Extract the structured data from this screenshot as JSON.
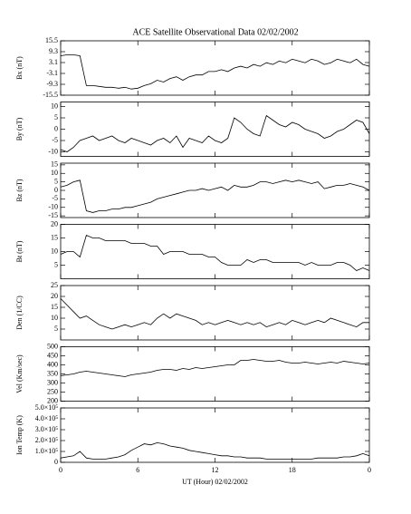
{
  "chart_data": [
    {
      "type": "line",
      "title": "ACE Satellite Observational Data   02/02/2002",
      "ylabel": "Bx (nT)",
      "color": "#000000",
      "x": [
        0,
        0.5,
        1,
        1.5,
        2,
        2.5,
        3,
        3.5,
        4,
        4.5,
        5,
        5.5,
        6,
        6.5,
        7,
        7.5,
        8,
        8.5,
        9,
        9.5,
        10,
        10.5,
        11,
        11.5,
        12,
        12.5,
        13,
        13.5,
        14,
        14.5,
        15,
        15.5,
        16,
        16.5,
        17,
        17.5,
        18,
        18.5,
        19,
        19.5,
        20,
        20.5,
        21,
        21.5,
        22,
        22.5,
        23,
        23.5,
        24
      ],
      "values": [
        7,
        7.5,
        7.5,
        7,
        -10,
        -10,
        -10.5,
        -11,
        -11,
        -11.5,
        -11,
        -12,
        -11.5,
        -10,
        -9,
        -7,
        -8,
        -6,
        -5,
        -7,
        -5,
        -4,
        -4,
        -2,
        -2,
        -1,
        -2,
        0,
        1,
        0,
        2,
        1,
        3,
        2,
        4,
        3,
        5,
        4,
        3,
        5,
        4,
        2,
        3,
        5,
        4,
        3,
        5,
        2,
        1
      ],
      "xlim": [
        0,
        24
      ],
      "xticks": [
        0,
        6,
        12,
        18,
        {
          "value": 24,
          "label": "0"
        }
      ],
      "ylim": [
        -15.5,
        15.5
      ],
      "yticks": [
        -15.5,
        -9.3,
        -3.1,
        3.1,
        9.3,
        15.5
      ]
    },
    {
      "type": "line",
      "ylabel": "By (nT)",
      "color": "#000000",
      "x": [
        0,
        0.5,
        1,
        1.5,
        2,
        2.5,
        3,
        3.5,
        4,
        4.5,
        5,
        5.5,
        6,
        6.5,
        7,
        7.5,
        8,
        8.5,
        9,
        9.5,
        10,
        10.5,
        11,
        11.5,
        12,
        12.5,
        13,
        13.5,
        14,
        14.5,
        15,
        15.5,
        16,
        16.5,
        17,
        17.5,
        18,
        18.5,
        19,
        19.5,
        20,
        20.5,
        21,
        21.5,
        22,
        22.5,
        23,
        23.5,
        24
      ],
      "values": [
        -9,
        -10,
        -8,
        -5,
        -4,
        -3,
        -5,
        -4,
        -3,
        -5,
        -6,
        -4,
        -5,
        -6,
        -7,
        -5,
        -4,
        -6,
        -3,
        -8,
        -4,
        -5,
        -6,
        -3,
        -5,
        -6,
        -4,
        5,
        3,
        0,
        -2,
        -3,
        6,
        4,
        2,
        1,
        3,
        2,
        0,
        -1,
        -2,
        -4,
        -3,
        -1,
        0,
        2,
        4,
        3,
        -2
      ],
      "xlim": [
        0,
        24
      ],
      "xticks": [
        0,
        6,
        12,
        18,
        {
          "value": 24,
          "label": "0"
        }
      ],
      "ylim": [
        -12,
        12
      ],
      "yticks": [
        -10,
        -5,
        0,
        5,
        10
      ]
    },
    {
      "type": "line",
      "ylabel": "Bz (nT)",
      "color": "#000000",
      "x": [
        0,
        0.5,
        1,
        1.5,
        2,
        2.5,
        3,
        3.5,
        4,
        4.5,
        5,
        5.5,
        6,
        6.5,
        7,
        7.5,
        8,
        8.5,
        9,
        9.5,
        10,
        10.5,
        11,
        11.5,
        12,
        12.5,
        13,
        13.5,
        14,
        14.5,
        15,
        15.5,
        16,
        16.5,
        17,
        17.5,
        18,
        18.5,
        19,
        19.5,
        20,
        20.5,
        21,
        21.5,
        22,
        22.5,
        23,
        23.5,
        24
      ],
      "values": [
        2,
        3,
        5,
        6,
        -12,
        -13,
        -12,
        -12,
        -11,
        -11,
        -10,
        -10,
        -9,
        -8,
        -7,
        -5,
        -4,
        -3,
        -2,
        -1,
        0,
        0,
        1,
        0,
        1,
        2,
        0,
        3,
        2,
        2,
        3,
        5,
        5,
        4,
        5,
        6,
        5,
        6,
        5,
        4,
        5,
        1,
        2,
        3,
        3,
        4,
        3,
        2,
        0
      ],
      "xlim": [
        0,
        24
      ],
      "xticks": [
        0,
        6,
        12,
        18,
        {
          "value": 24,
          "label": "0"
        }
      ],
      "ylim": [
        -16,
        16
      ],
      "yticks": [
        -15,
        -10,
        -5,
        0,
        5,
        10,
        15
      ]
    },
    {
      "type": "line",
      "ylabel": "Bt (nT)",
      "color": "#000000",
      "x": [
        0,
        0.5,
        1,
        1.5,
        2,
        2.5,
        3,
        3.5,
        4,
        4.5,
        5,
        5.5,
        6,
        6.5,
        7,
        7.5,
        8,
        8.5,
        9,
        9.5,
        10,
        10.5,
        11,
        11.5,
        12,
        12.5,
        13,
        13.5,
        14,
        14.5,
        15,
        15.5,
        16,
        16.5,
        17,
        17.5,
        18,
        18.5,
        19,
        19.5,
        20,
        20.5,
        21,
        21.5,
        22,
        22.5,
        23,
        23.5,
        24
      ],
      "values": [
        9,
        10,
        10,
        8,
        16,
        15,
        15,
        14,
        14,
        14,
        14,
        13,
        13,
        13,
        12,
        12,
        9,
        10,
        10,
        10,
        9,
        9,
        9,
        8,
        8,
        6,
        5,
        5,
        5,
        7,
        6,
        7,
        7,
        6,
        6,
        6,
        6,
        6,
        5,
        6,
        5,
        5,
        5,
        6,
        6,
        5,
        3,
        4,
        3
      ],
      "xlim": [
        0,
        24
      ],
      "xticks": [
        0,
        6,
        12,
        18,
        {
          "value": 24,
          "label": "0"
        }
      ],
      "ylim": [
        0,
        20
      ],
      "yticks": [
        5,
        10,
        15,
        20
      ]
    },
    {
      "type": "line",
      "ylabel": "Den (1/CC)",
      "color": "#000000",
      "x": [
        0,
        0.5,
        1,
        1.5,
        2,
        2.5,
        3,
        3.5,
        4,
        4.5,
        5,
        5.5,
        6,
        6.5,
        7,
        7.5,
        8,
        8.5,
        9,
        9.5,
        10,
        10.5,
        11,
        11.5,
        12,
        12.5,
        13,
        13.5,
        14,
        14.5,
        15,
        15.5,
        16,
        16.5,
        17,
        17.5,
        18,
        18.5,
        19,
        19.5,
        20,
        20.5,
        21,
        21.5,
        22,
        22.5,
        23,
        23.5,
        24
      ],
      "values": [
        19,
        16,
        13,
        10,
        11,
        9,
        7,
        6,
        5,
        6,
        7,
        6,
        7,
        8,
        7,
        10,
        12,
        10,
        12,
        11,
        10,
        9,
        7,
        8,
        7,
        8,
        9,
        8,
        7,
        8,
        7,
        8,
        6,
        7,
        8,
        7,
        9,
        8,
        7,
        8,
        9,
        8,
        10,
        9,
        8,
        7,
        6,
        8,
        8
      ],
      "xlim": [
        0,
        24
      ],
      "xticks": [
        0,
        6,
        12,
        18,
        {
          "value": 24,
          "label": "0"
        }
      ],
      "ylim": [
        0,
        25
      ],
      "yticks": [
        5,
        10,
        15,
        20,
        25
      ]
    },
    {
      "type": "line",
      "ylabel": "Vel (Km/sec)",
      "color": "#000000",
      "x": [
        0,
        0.5,
        1,
        1.5,
        2,
        2.5,
        3,
        3.5,
        4,
        4.5,
        5,
        5.5,
        6,
        6.5,
        7,
        7.5,
        8,
        8.5,
        9,
        9.5,
        10,
        10.5,
        11,
        11.5,
        12,
        12.5,
        13,
        13.5,
        14,
        14.5,
        15,
        15.5,
        16,
        16.5,
        17,
        17.5,
        18,
        18.5,
        19,
        19.5,
        20,
        20.5,
        21,
        21.5,
        22,
        22.5,
        23,
        23.5,
        24
      ],
      "values": [
        340,
        345,
        350,
        360,
        365,
        360,
        355,
        350,
        345,
        340,
        335,
        345,
        350,
        355,
        360,
        370,
        375,
        375,
        370,
        380,
        375,
        385,
        380,
        385,
        390,
        395,
        400,
        400,
        425,
        425,
        430,
        425,
        420,
        420,
        425,
        415,
        410,
        410,
        415,
        410,
        405,
        410,
        415,
        410,
        420,
        415,
        410,
        405,
        410
      ],
      "xlim": [
        0,
        24
      ],
      "xticks": [
        0,
        6,
        12,
        18,
        {
          "value": 24,
          "label": "0"
        }
      ],
      "ylim": [
        200,
        500
      ],
      "yticks": [
        200,
        250,
        300,
        350,
        400,
        450,
        500
      ]
    },
    {
      "type": "line",
      "ylabel": "Ion Temp (K)",
      "xlabel": "UT (Hour)   02/02/2002",
      "color": "#000000",
      "x": [
        0,
        0.5,
        1,
        1.5,
        2,
        2.5,
        3,
        3.5,
        4,
        4.5,
        5,
        5.5,
        6,
        6.5,
        7,
        7.5,
        8,
        8.5,
        9,
        9.5,
        10,
        10.5,
        11,
        11.5,
        12,
        12.5,
        13,
        13.5,
        14,
        14.5,
        15,
        15.5,
        16,
        16.5,
        17,
        17.5,
        18,
        18.5,
        19,
        19.5,
        20,
        20.5,
        21,
        21.5,
        22,
        22.5,
        23,
        23.5,
        24
      ],
      "values": [
        40000,
        50000,
        60000,
        100000,
        40000,
        30000,
        30000,
        30000,
        40000,
        50000,
        70000,
        110000,
        140000,
        170000,
        160000,
        180000,
        170000,
        150000,
        140000,
        130000,
        110000,
        100000,
        90000,
        80000,
        70000,
        60000,
        60000,
        50000,
        50000,
        40000,
        40000,
        40000,
        30000,
        30000,
        30000,
        30000,
        30000,
        30000,
        30000,
        30000,
        40000,
        40000,
        40000,
        40000,
        50000,
        50000,
        60000,
        80000,
        60000
      ],
      "xlim": [
        0,
        24
      ],
      "xticks": [
        0,
        6,
        {
          "value": 12,
          "label": "12"
        },
        18,
        {
          "value": 24,
          "label": "0"
        }
      ],
      "ylim": [
        0,
        500000
      ],
      "yticks": [
        0,
        {
          "value": 100000,
          "label": "1.0×10⁵"
        },
        {
          "value": 200000,
          "label": "2.0×10⁵"
        },
        {
          "value": 300000,
          "label": "3.0×10⁵"
        },
        {
          "value": 400000,
          "label": "4.0×10⁵"
        },
        {
          "value": 500000,
          "label": "5.0×10⁵"
        }
      ]
    }
  ]
}
